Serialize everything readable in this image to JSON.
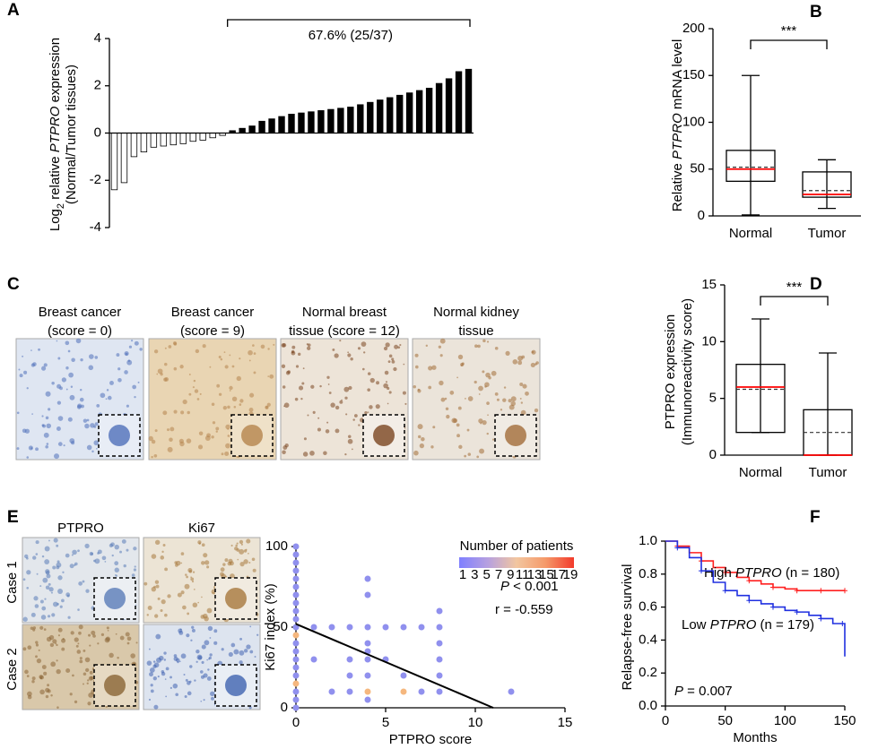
{
  "chart_data": [
    {
      "panel": "A",
      "type": "bar",
      "ylabel": [
        [
          {
            "text": "Log"
          },
          {
            "text": "2",
            "sub": true
          },
          {
            "text": " relative "
          },
          {
            "text": "PTPRO",
            "italic": true
          },
          {
            "text": " expression"
          }
        ],
        [
          {
            "text": "(Normal/Tumor tissues)"
          }
        ]
      ],
      "annotation": "67.6% (25/37)",
      "values": [
        -2.4,
        -2.1,
        -1.0,
        -0.8,
        -0.6,
        -0.55,
        -0.5,
        -0.45,
        -0.35,
        -0.3,
        -0.2,
        -0.1,
        0.1,
        0.2,
        0.3,
        0.5,
        0.6,
        0.7,
        0.8,
        0.85,
        0.9,
        0.95,
        1.0,
        1.05,
        1.1,
        1.2,
        1.3,
        1.4,
        1.5,
        1.6,
        1.7,
        1.8,
        1.9,
        2.1,
        2.3,
        2.6,
        2.7
      ],
      "color": "#000000",
      "negative_fill": "#ffffff",
      "ylim": [
        -4,
        4
      ],
      "yticks": [
        -4,
        -2,
        0,
        2,
        4
      ]
    },
    {
      "panel": "B",
      "type": "box",
      "ylabel": [
        [
          {
            "text": "Relative "
          },
          {
            "text": "PTPRO",
            "italic": true
          },
          {
            "text": " mRNA level"
          }
        ]
      ],
      "categories": [
        "Normal",
        "Tumor"
      ],
      "boxes": [
        {
          "min": 1,
          "q1": 37,
          "median": 50,
          "mean": 52,
          "q3": 70,
          "max": 150
        },
        {
          "min": 8,
          "q1": 20,
          "median": 23,
          "mean": 27,
          "q3": 47,
          "max": 60
        }
      ],
      "median_color": "#ff0000",
      "significance": "***",
      "ylim": [
        0,
        200
      ],
      "yticks": [
        0,
        50,
        100,
        150,
        200
      ]
    },
    {
      "panel": "D",
      "type": "box",
      "ylabel": [
        [
          {
            "text": "PTPRO expression"
          }
        ],
        [
          {
            "text": "(Immunoreactivity score)"
          }
        ]
      ],
      "categories": [
        "Normal",
        "Tumor"
      ],
      "boxes": [
        {
          "min": 2,
          "q1": 2,
          "median": 6,
          "mean": 5.8,
          "q3": 8,
          "max": 12
        },
        {
          "min": 0,
          "q1": 0,
          "median": 0,
          "mean": 2,
          "q3": 4,
          "max": 9
        }
      ],
      "median_color": "#ff0000",
      "significance": "***",
      "ylim": [
        0,
        15
      ],
      "yticks": [
        0,
        5,
        10,
        15
      ]
    },
    {
      "panel": "E",
      "type": "scatter",
      "xlabel": "PTPRO score",
      "ylabel": [
        [
          {
            "text": "Ki67 index (%)"
          }
        ]
      ],
      "x": [
        0,
        0,
        0,
        0,
        0,
        0,
        0,
        0,
        0,
        0,
        0,
        0,
        0,
        0,
        0,
        0,
        0,
        0,
        0,
        0,
        0,
        1,
        1,
        2,
        2,
        3,
        3,
        3,
        3,
        4,
        4,
        4,
        4,
        4,
        4,
        4,
        4,
        4,
        5,
        5,
        6,
        6,
        6,
        7,
        7,
        8,
        8,
        8,
        8,
        8,
        8,
        12
      ],
      "values": [
        100,
        95,
        90,
        85,
        80,
        75,
        70,
        65,
        60,
        55,
        50,
        45,
        40,
        35,
        30,
        25,
        20,
        15,
        10,
        5,
        0,
        50,
        30,
        50,
        10,
        50,
        30,
        20,
        10,
        80,
        70,
        50,
        40,
        35,
        30,
        20,
        10,
        5,
        50,
        30,
        50,
        20,
        10,
        50,
        10,
        60,
        50,
        40,
        30,
        20,
        10,
        10
      ],
      "colors": [
        "#9090ee",
        "#9090ee",
        "#9090ee",
        "#9090ee",
        "#9090ee",
        "#9090ee",
        "#9090ee",
        "#9090ee",
        "#9090ee",
        "#9090ee",
        "#9090ee",
        "#f5b77e",
        "#9090ee",
        "#9090ee",
        "#9090ee",
        "#9090ee",
        "#9090ee",
        "#f5b77e",
        "#9090ee",
        "#9090ee",
        "#9090ee",
        "#9090ee",
        "#9090ee",
        "#9090ee",
        "#9090ee",
        "#9090ee",
        "#9090ee",
        "#9090ee",
        "#9090ee",
        "#9090ee",
        "#9090ee",
        "#9090ee",
        "#9090ee",
        "#9090ee",
        "#9090ee",
        "#9090ee",
        "#f5b77e",
        "#9090ee",
        "#9090ee",
        "#9090ee",
        "#9090ee",
        "#9090ee",
        "#f5b77e",
        "#9090ee",
        "#9090ee",
        "#9090ee",
        "#9090ee",
        "#9090ee",
        "#9090ee",
        "#9090ee",
        "#9090ee",
        "#9090ee"
      ],
      "fit": {
        "x": [
          0,
          11
        ],
        "values": [
          52,
          0
        ]
      },
      "annotations": [
        [
          {
            "text": "P",
            "italic": true
          },
          {
            "text": " < 0.001"
          }
        ],
        [
          {
            "text": "r = -0.559"
          }
        ]
      ],
      "colorbar": {
        "title": "Number of patients",
        "ticks": [
          1,
          3,
          5,
          7,
          9,
          11,
          13,
          15,
          17,
          19
        ],
        "colors": [
          "#7f7fff",
          "#b6a0e0",
          "#f2c6a0",
          "#f59a6a",
          "#f23b2b"
        ]
      },
      "xlim": [
        0,
        15
      ],
      "xticks": [
        0,
        5,
        10,
        15
      ],
      "ylim": [
        0,
        100
      ],
      "yticks": [
        0,
        50,
        100
      ]
    },
    {
      "panel": "F",
      "type": "line",
      "step": true,
      "xlabel": "Months",
      "ylabel": [
        [
          {
            "text": "Relapse-free survival"
          }
        ]
      ],
      "series": [
        {
          "name": [
            {
              "text": "High "
            },
            {
              "text": "PTPRO",
              "italic": true
            },
            {
              "text": " (n = 180)"
            }
          ],
          "color": "#ff2020",
          "x": [
            0,
            10,
            20,
            30,
            40,
            50,
            60,
            70,
            80,
            90,
            100,
            110,
            120,
            130,
            140,
            150
          ],
          "values": [
            1.0,
            0.97,
            0.93,
            0.88,
            0.84,
            0.81,
            0.78,
            0.76,
            0.74,
            0.72,
            0.71,
            0.7,
            0.7,
            0.7,
            0.7,
            0.7
          ]
        },
        {
          "name": [
            {
              "text": "Low "
            },
            {
              "text": "PTPRO",
              "italic": true
            },
            {
              "text": " (n = 179)"
            }
          ],
          "color": "#2030e0",
          "x": [
            0,
            10,
            20,
            30,
            40,
            50,
            60,
            70,
            80,
            90,
            100,
            110,
            120,
            130,
            140,
            148,
            150
          ],
          "values": [
            1.0,
            0.96,
            0.9,
            0.82,
            0.75,
            0.7,
            0.67,
            0.64,
            0.62,
            0.6,
            0.58,
            0.57,
            0.55,
            0.53,
            0.5,
            0.5,
            0.3
          ]
        }
      ],
      "annotations": [
        [
          {
            "text": "P",
            "italic": true
          },
          {
            "text": " = 0.007"
          }
        ]
      ],
      "xlim": [
        0,
        150
      ],
      "xticks": [
        0,
        50,
        100,
        150
      ],
      "ylim": [
        0,
        1.0
      ],
      "yticks": [
        {
          "value": 0,
          "label": "0.0"
        },
        {
          "value": 0.2,
          "label": "0.2"
        },
        {
          "value": 0.4,
          "label": "0.4"
        },
        {
          "value": 0.6,
          "label": "0.6"
        },
        {
          "value": 0.8,
          "label": "0.8"
        },
        {
          "value": 1.0,
          "label": "1.0"
        }
      ]
    }
  ],
  "images": [
    {
      "panel": "C",
      "items": [
        {
          "title": [
            "Breast cancer",
            "(score = 0)"
          ]
        },
        {
          "title": [
            "Breast cancer",
            "(score = 9)"
          ]
        },
        {
          "title": [
            "Normal breast",
            "tissue (score = 12)"
          ]
        },
        {
          "title": [
            "Normal kidney",
            "tissue"
          ]
        }
      ]
    },
    {
      "panel": "E",
      "columns": [
        "PTPRO",
        "Ki67"
      ],
      "rows": [
        "Case 1",
        "Case 2"
      ]
    }
  ]
}
